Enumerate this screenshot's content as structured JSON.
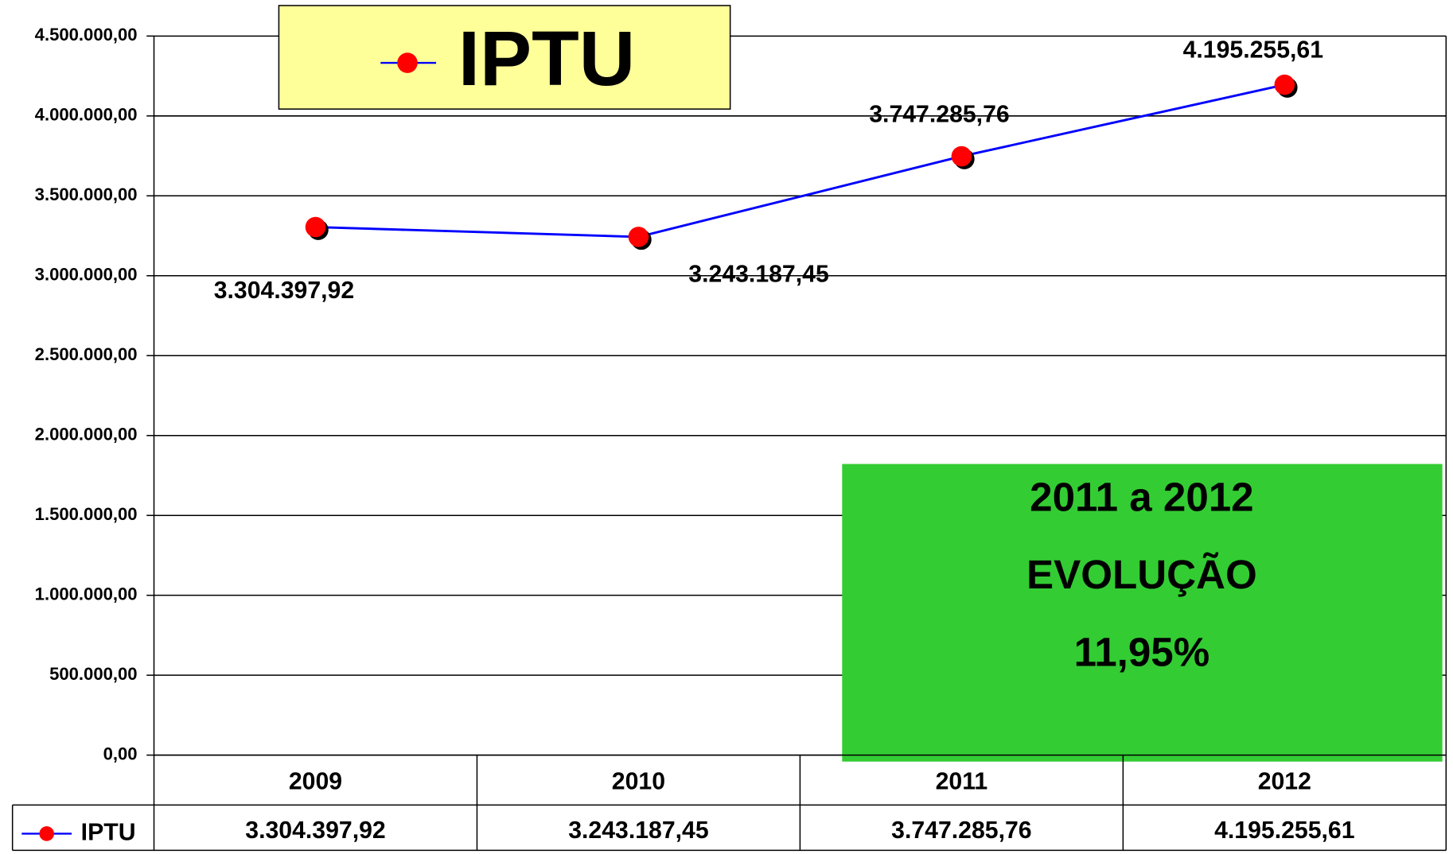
{
  "chart_data": {
    "type": "line",
    "categories": [
      "2009",
      "2010",
      "2011",
      "2012"
    ],
    "series": [
      {
        "name": "IPTU",
        "color": "#0000ff",
        "marker_color": "#ff0000",
        "values": [
          3304397.92,
          3243187.45,
          3747285.76,
          4195255.61
        ],
        "value_labels": [
          "3.304.397,92",
          "3.243.187,45",
          "3.747.285,76",
          "4.195.255,61"
        ]
      }
    ],
    "ylim": [
      0,
      4500000
    ],
    "yticks": [
      {
        "value": 0,
        "label": "0,00"
      },
      {
        "value": 500000,
        "label": "500.000,00"
      },
      {
        "value": 1000000,
        "label": "1.000.000,00"
      },
      {
        "value": 1500000,
        "label": "1.500.000,00"
      },
      {
        "value": 2000000,
        "label": "2.000.000,00"
      },
      {
        "value": 2500000,
        "label": "2.500.000,00"
      },
      {
        "value": 3000000,
        "label": "3.000.000,00"
      },
      {
        "value": 3500000,
        "label": "3.500.000,00"
      },
      {
        "value": 4000000,
        "label": "4.000.000,00"
      },
      {
        "value": 4500000,
        "label": "4.500.000,00"
      }
    ],
    "grid": true,
    "annotation": {
      "lines": [
        "2011 a 2012",
        "EVOLUÇÃO",
        "11,95%"
      ],
      "color": "#33cc33"
    },
    "legend_color": "#ffff99",
    "data_table": true
  }
}
